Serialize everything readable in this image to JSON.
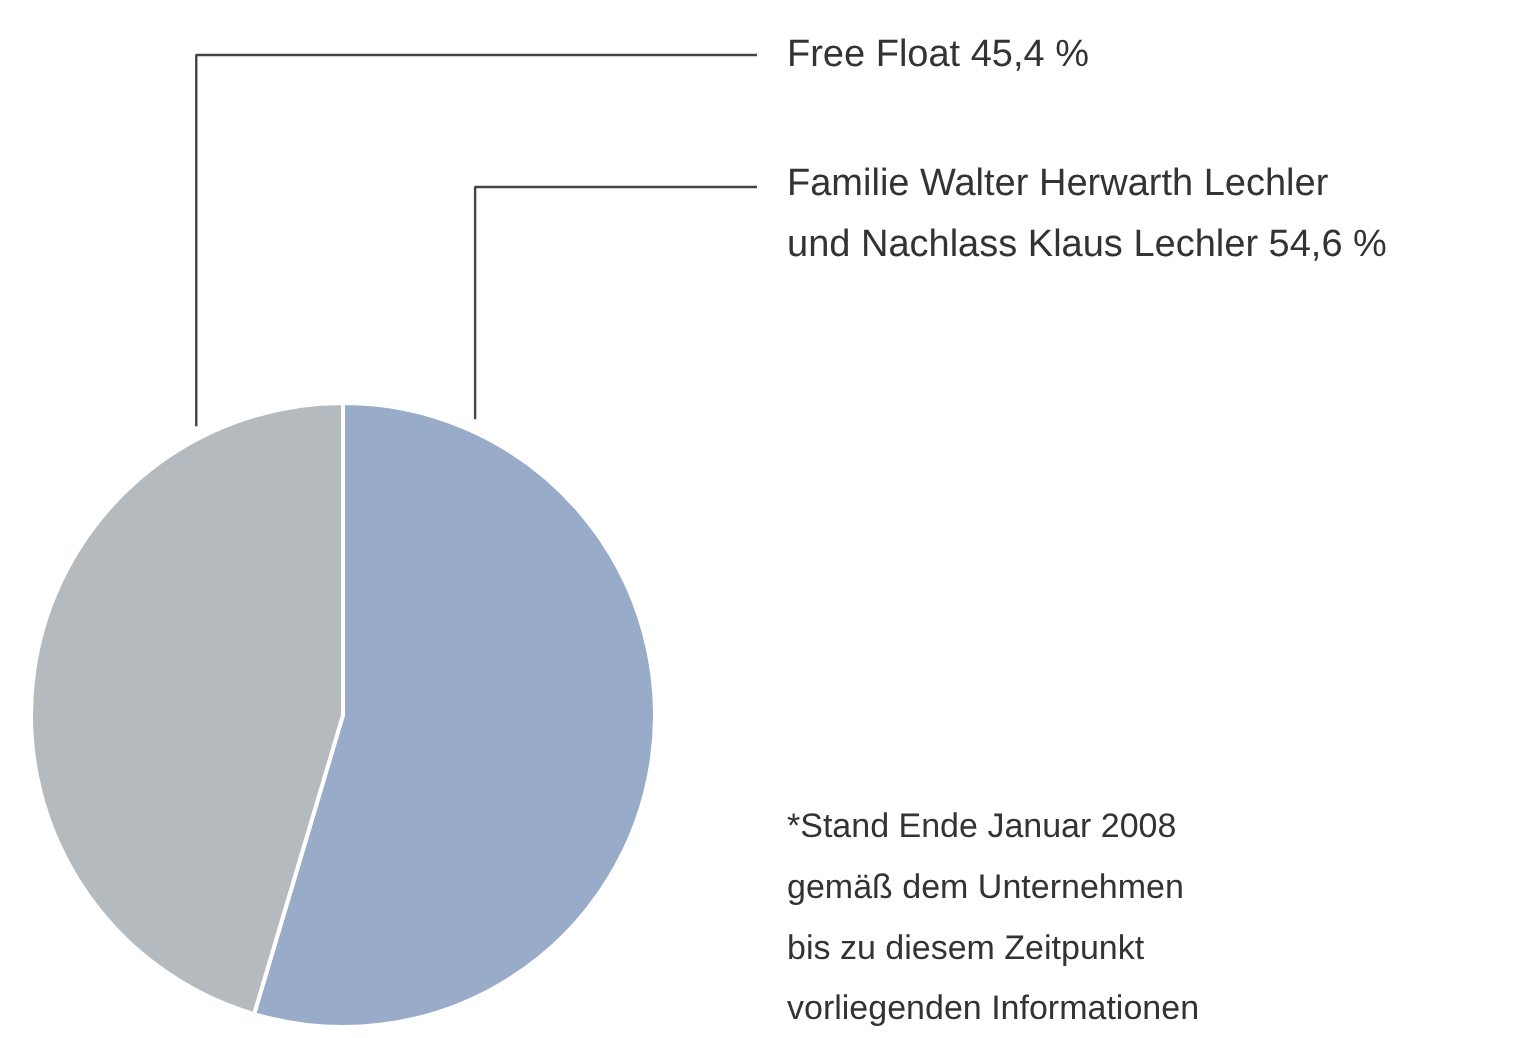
{
  "chart_data": {
    "type": "pie",
    "categories": [
      "Familie Walter Herwarth Lechler\nund Nachlass Klaus Lechler",
      "Free Float"
    ],
    "values": [
      54.6,
      45.4
    ],
    "value_labels": [
      "54,6 %",
      "45,4 %"
    ],
    "colors": [
      "#98abc8",
      "#b4babd"
    ],
    "annotations": [
      "*Stand Ende Januar 2008\ngemäß dem Unternehmen\nbis zu diesem Zeitpunkt\nvorliegenden Informationen"
    ]
  }
}
